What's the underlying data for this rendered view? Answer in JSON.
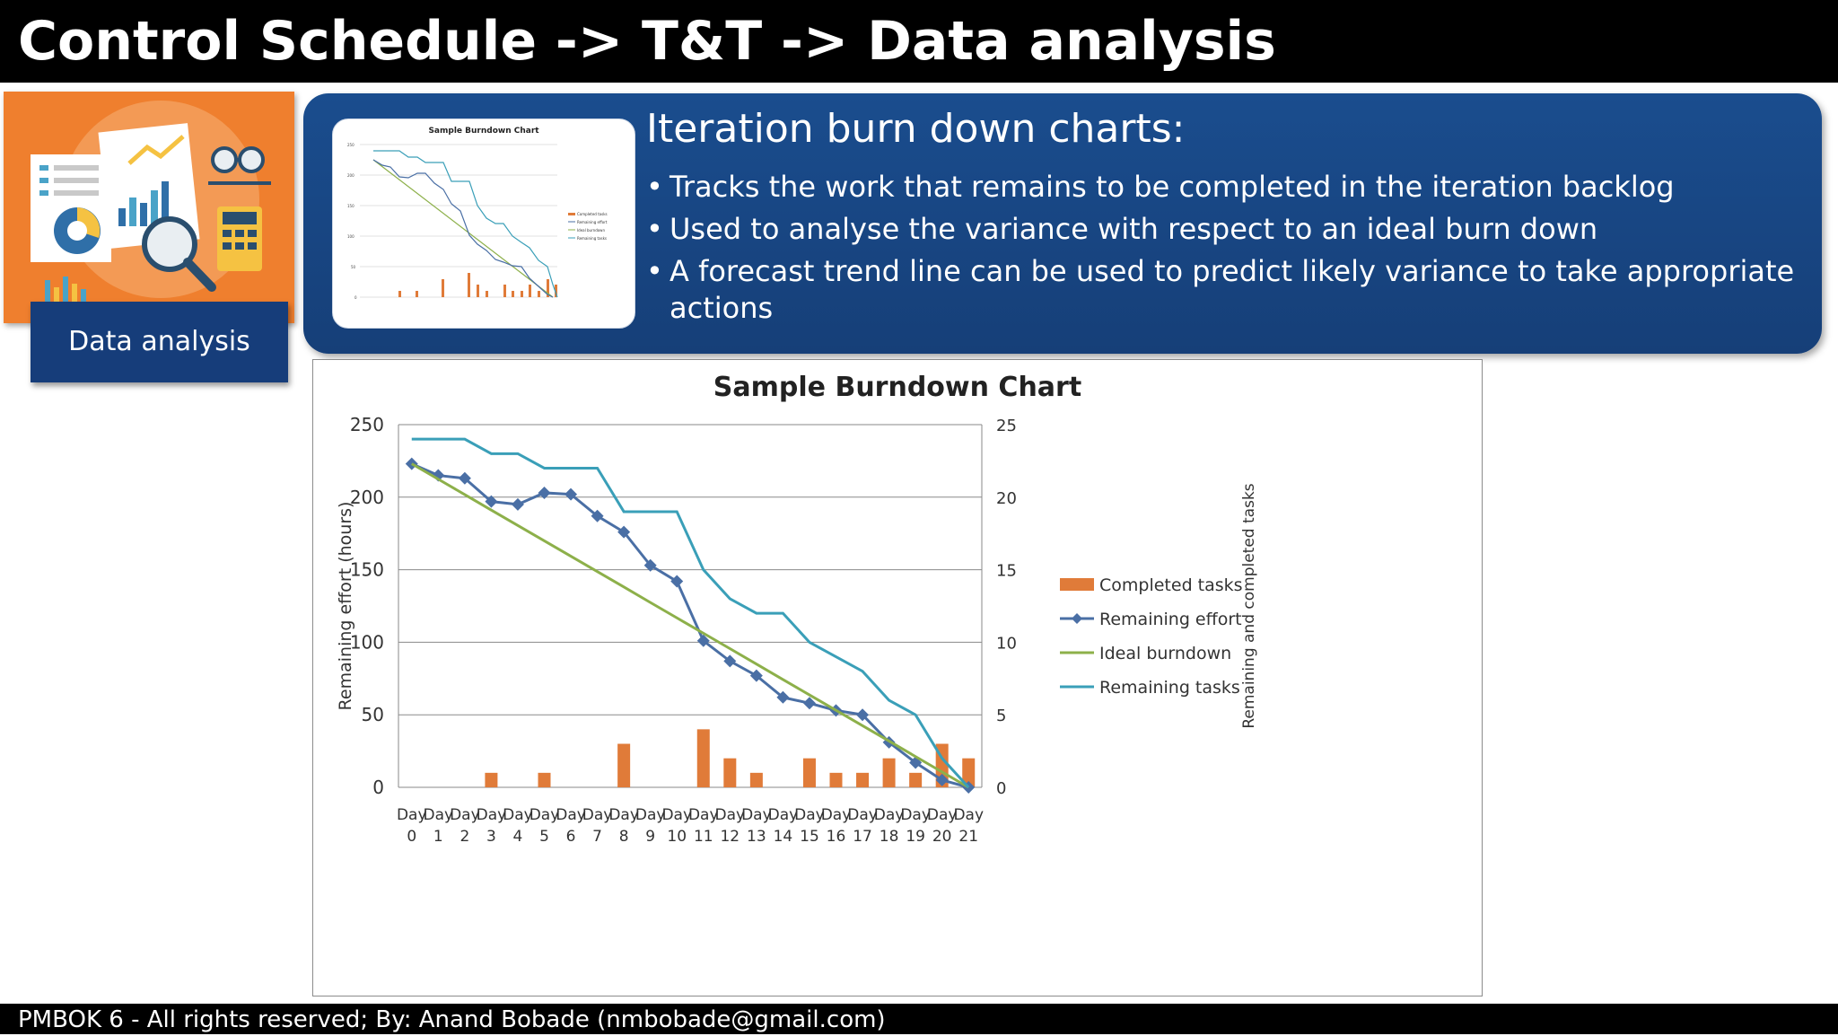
{
  "header": {
    "title": "Control Schedule -> T&T -> Data analysis"
  },
  "topic": {
    "label": "Data analysis"
  },
  "panel": {
    "heading": "Iteration burn down charts:",
    "bullets": [
      "Tracks the work that remains to be completed in the iteration backlog",
      "Used to analyse the variance with respect to an ideal burn down",
      "A forecast trend line can be used to predict likely variance to take appropriate actions"
    ]
  },
  "footer": {
    "text": "PMBOK 6 - All rights reserved; By: Anand Bobade (nmbobade@gmail.com)"
  },
  "colors": {
    "header_bg": "#000000",
    "panel_bg": "#1a4d8e",
    "topic_bg": "#ef7f2e",
    "completed": "#e07b39",
    "effort": "#4a6fa5",
    "ideal": "#8db04a",
    "tasks": "#3a9fb8"
  },
  "chart_data": {
    "type": "bar+line",
    "title": "Sample Burndown Chart",
    "ylabel": "Remaining effort (hours)",
    "y2label": "Remaining and completed tasks",
    "ylim": [
      0,
      250
    ],
    "y2lim": [
      0,
      25
    ],
    "yticks": [
      0,
      50,
      100,
      150,
      200,
      250
    ],
    "y2ticks": [
      0,
      5,
      10,
      15,
      20,
      25
    ],
    "grid": true,
    "legend_position": "right",
    "categories": [
      "Day 0",
      "Day 1",
      "Day 2",
      "Day 3",
      "Day 4",
      "Day 5",
      "Day 6",
      "Day 7",
      "Day 8",
      "Day 9",
      "Day 10",
      "Day 11",
      "Day 12",
      "Day 13",
      "Day 14",
      "Day 15",
      "Day 16",
      "Day 17",
      "Day 18",
      "Day 19",
      "Day 20",
      "Day 21"
    ],
    "series": [
      {
        "name": "Completed tasks",
        "type": "bar",
        "axis": "right",
        "values": [
          0,
          0,
          0,
          1,
          0,
          1,
          0,
          0,
          3,
          0,
          0,
          4,
          2,
          1,
          0,
          2,
          1,
          1,
          2,
          1,
          3,
          2
        ]
      },
      {
        "name": "Remaining effort",
        "type": "line-marker",
        "axis": "left",
        "values": [
          223,
          215,
          213,
          197,
          195,
          203,
          202,
          187,
          176,
          153,
          142,
          101,
          87,
          77,
          62,
          58,
          53,
          50,
          31,
          17,
          5,
          0
        ]
      },
      {
        "name": "Ideal burndown",
        "type": "line",
        "axis": "left",
        "values": [
          223,
          212.4,
          201.8,
          191.1,
          180.5,
          169.9,
          159.3,
          148.7,
          138.1,
          127.4,
          116.8,
          106.2,
          95.6,
          85,
          74.3,
          63.7,
          53.1,
          42.5,
          31.9,
          21.2,
          10.6,
          0
        ]
      },
      {
        "name": "Remaining tasks",
        "type": "line",
        "axis": "right",
        "values": [
          24,
          24,
          24,
          23,
          23,
          22,
          22,
          22,
          19,
          19,
          19,
          15,
          13,
          12,
          12,
          10,
          9,
          8,
          6,
          5,
          2,
          0
        ]
      }
    ]
  }
}
